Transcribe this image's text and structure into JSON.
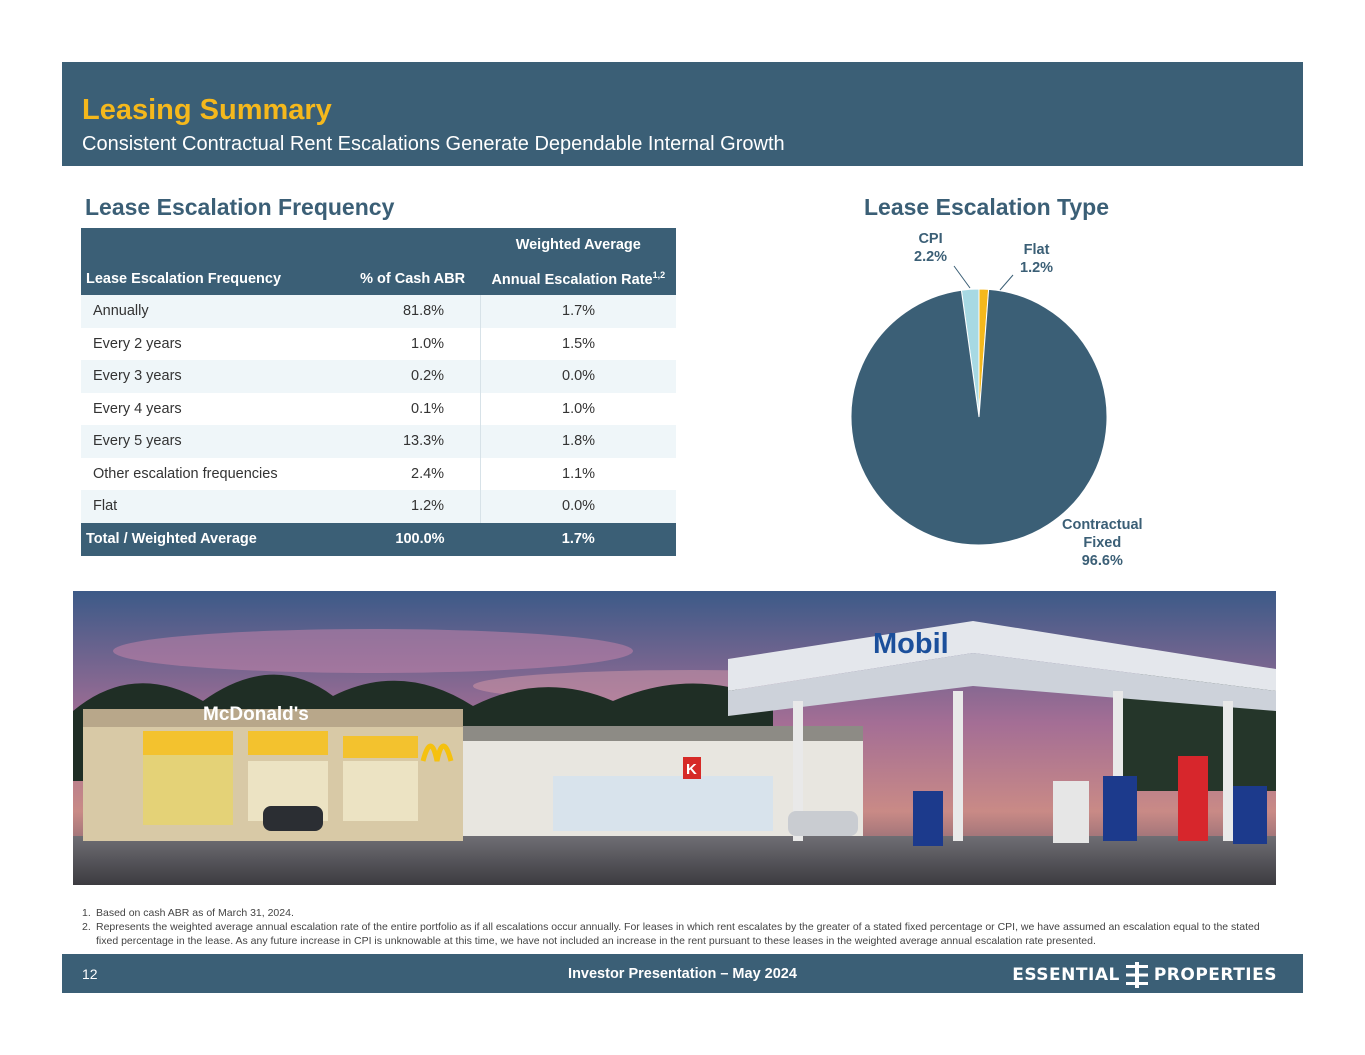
{
  "header": {
    "title": "Leasing Summary",
    "subtitle": "Consistent Contractual Rent Escalations Generate Dependable Internal Growth"
  },
  "left_section": {
    "title": "Lease Escalation Frequency"
  },
  "right_section": {
    "title": "Lease Escalation Type"
  },
  "table": {
    "header_top": "Weighted Average",
    "col1": "Lease Escalation Frequency",
    "col2": "% of Cash ABR",
    "col3": "Annual Escalation Rate",
    "col3_sup": "1,2",
    "rows": [
      {
        "freq": "Annually",
        "pct": "81.8%",
        "rate": "1.7%"
      },
      {
        "freq": "Every 2 years",
        "pct": "1.0%",
        "rate": "1.5%"
      },
      {
        "freq": "Every 3 years",
        "pct": "0.2%",
        "rate": "0.0%"
      },
      {
        "freq": "Every 4 years",
        "pct": "0.1%",
        "rate": "1.0%"
      },
      {
        "freq": "Every 5 years",
        "pct": "13.3%",
        "rate": "1.8%"
      },
      {
        "freq": "Other escalation frequencies",
        "pct": "2.4%",
        "rate": "1.1%"
      },
      {
        "freq": "Flat",
        "pct": "1.2%",
        "rate": "0.0%"
      }
    ],
    "total": {
      "freq": "Total / Weighted Average",
      "pct": "100.0%",
      "rate": "1.7%"
    }
  },
  "chart_data": {
    "type": "pie",
    "slices": [
      {
        "label": "Contractual Fixed",
        "value": 96.6,
        "display": "96.6%",
        "color": "#3b5f76"
      },
      {
        "label": "CPI",
        "value": 2.2,
        "display": "2.2%",
        "color": "#a7d9e3"
      },
      {
        "label": "Flat",
        "value": 1.2,
        "display": "1.2%",
        "color": "#f5b81c"
      }
    ],
    "labels": {
      "cpi_name": "CPI",
      "cpi_value": "2.2%",
      "flat_name": "Flat",
      "flat_value": "1.2%",
      "fixed_name_1": "Contractual",
      "fixed_name_2": "Fixed",
      "fixed_value": "96.6%"
    }
  },
  "photo": {
    "signs": {
      "mcdonalds": "McDonald's",
      "mobil": "Mobil",
      "circle_k": "K"
    }
  },
  "footnotes": [
    {
      "num": "1.",
      "text": "Based on cash ABR as of March 31, 2024."
    },
    {
      "num": "2.",
      "text": "Represents the weighted average annual escalation rate of the entire portfolio as if all escalations occur annually. For leases in which rent escalates by the greater of a stated fixed percentage or CPI, we have assumed an escalation equal to the stated fixed percentage in the lease. As any future increase in CPI is unknowable at this time, we have not included an increase in the rent pursuant to these leases in the weighted average annual escalation rate presented."
    }
  ],
  "footer": {
    "page_number": "12",
    "center": "Investor Presentation – May 2024",
    "logo_left": "ESSENTIAL",
    "logo_right": "PROPERTIES"
  },
  "colors": {
    "brand_blue": "#3b5f76",
    "brand_gold": "#f5b81c",
    "cpi_light": "#a7d9e3"
  }
}
